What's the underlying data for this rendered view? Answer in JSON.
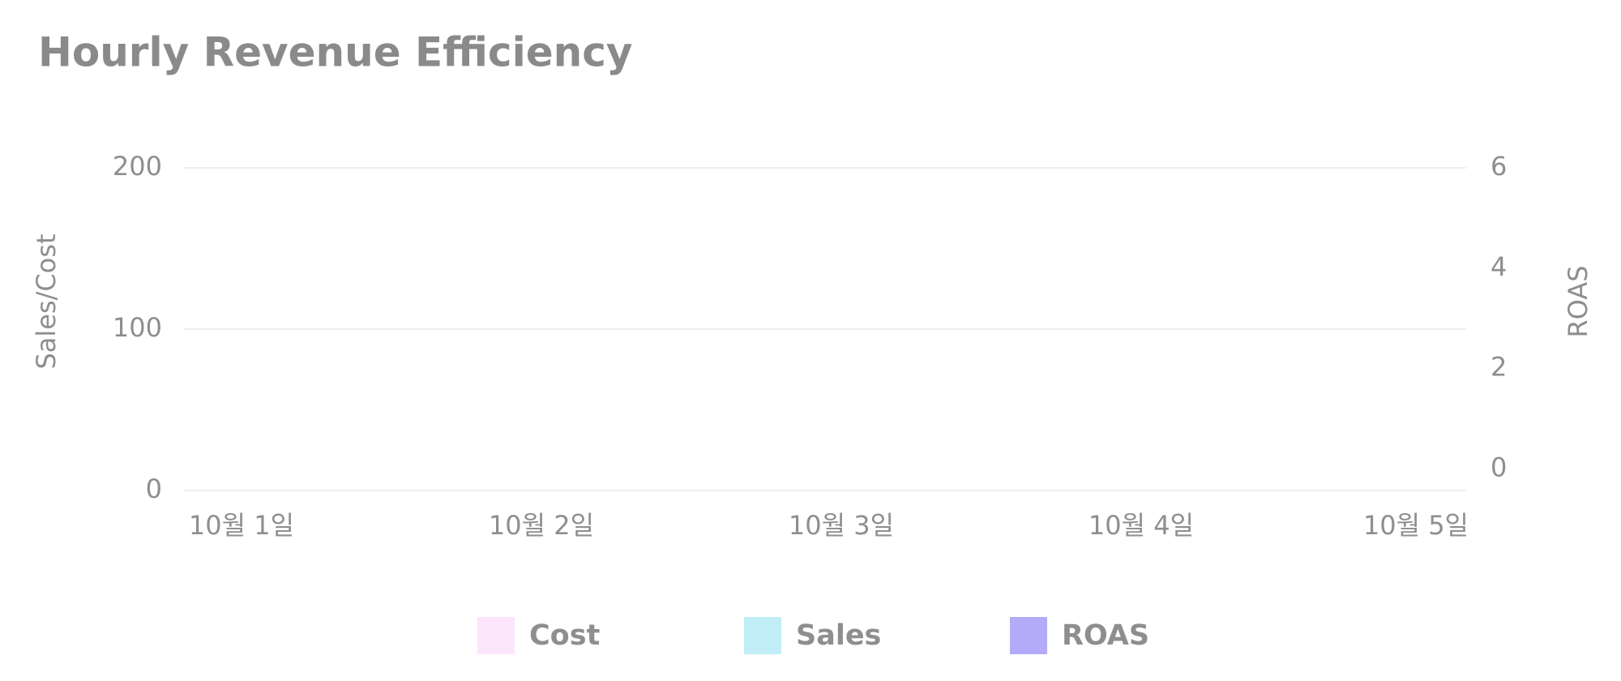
{
  "chart_data": {
    "type": "bar",
    "title": "Hourly Revenue Efficiency",
    "ylabel": "Sales/Cost",
    "y2label": "ROAS",
    "categories": [
      "10월 1일",
      "10월 2일",
      "10월 3일",
      "10월 4일",
      "10월 5일"
    ],
    "series": [
      {
        "name": "Cost",
        "color": "#fbe6fb",
        "type": "bar",
        "values": [
          null,
          null,
          null,
          null,
          null
        ]
      },
      {
        "name": "Sales",
        "color": "#c1eef6",
        "type": "bar",
        "values": [
          null,
          null,
          null,
          null,
          null
        ]
      },
      {
        "name": "ROAS",
        "color": "#b4abf8",
        "type": "line",
        "axis": "y2",
        "values": [
          null,
          null,
          null,
          null,
          null
        ]
      }
    ],
    "ylim": [
      0,
      200
    ],
    "yticks": [
      0,
      100,
      200
    ],
    "y2lim": [
      -0.43,
      6
    ],
    "y2ticks": [
      0,
      2,
      4,
      6
    ],
    "grid": true,
    "legend": "bottom"
  }
}
